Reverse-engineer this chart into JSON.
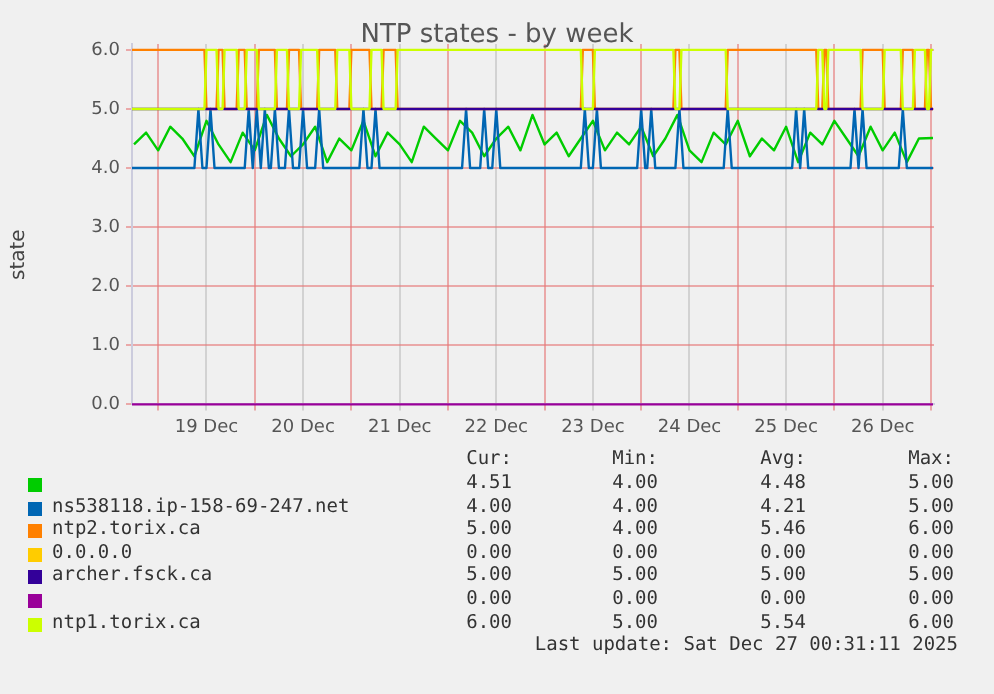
{
  "chart_data": {
    "type": "line",
    "title": "NTP states - by week",
    "ylabel": "state",
    "xlim": [
      "2025-12-18T17:30",
      "2025-12-27T00:45"
    ],
    "xticks": [
      {
        "value": "2025-12-19T00:00",
        "label": null
      },
      {
        "value": "2025-12-19T12:00",
        "label": "19 Dec"
      },
      {
        "value": "2025-12-20T00:00",
        "label": null
      },
      {
        "value": "2025-12-20T12:00",
        "label": "20 Dec"
      },
      {
        "value": "2025-12-21T00:00",
        "label": null
      },
      {
        "value": "2025-12-21T12:00",
        "label": "21 Dec"
      },
      {
        "value": "2025-12-22T00:00",
        "label": null
      },
      {
        "value": "2025-12-22T12:00",
        "label": "22 Dec"
      },
      {
        "value": "2025-12-23T00:00",
        "label": null
      },
      {
        "value": "2025-12-23T12:00",
        "label": "23 Dec"
      },
      {
        "value": "2025-12-24T00:00",
        "label": null
      },
      {
        "value": "2025-12-24T12:00",
        "label": "24 Dec"
      },
      {
        "value": "2025-12-25T00:00",
        "label": null
      },
      {
        "value": "2025-12-25T12:00",
        "label": "25 Dec"
      },
      {
        "value": "2025-12-26T00:00",
        "label": null
      },
      {
        "value": "2025-12-26T12:00",
        "label": "26 Dec"
      },
      {
        "value": "2025-12-27T00:00",
        "label": null
      }
    ],
    "ylim": [
      0,
      6.1
    ],
    "yticks": [
      {
        "value": 0,
        "label": "0.0"
      },
      {
        "value": 1,
        "label": "1.0"
      },
      {
        "value": 2,
        "label": "2.0"
      },
      {
        "value": 3,
        "label": "3.0"
      },
      {
        "value": 4,
        "label": "4.0"
      },
      {
        "value": 5,
        "label": "5.0"
      },
      {
        "value": 6,
        "label": "6.0"
      }
    ],
    "grid": true,
    "legend": "bottom",
    "marker": "none",
    "line_style": "solid",
    "series": [
      {
        "color": "#00cc00",
        "x": [
          "2025-12-18T18:00",
          "2025-12-18T21:00",
          "2025-12-19T00:00",
          "2025-12-19T03:00",
          "2025-12-19T06:00",
          "2025-12-19T09:00",
          "2025-12-19T12:00",
          "2025-12-19T15:00",
          "2025-12-19T18:00",
          "2025-12-19T21:00",
          "2025-12-20T00:00",
          "2025-12-20T03:00",
          "2025-12-20T06:00",
          "2025-12-20T09:00",
          "2025-12-20T12:00",
          "2025-12-20T15:00",
          "2025-12-20T18:00",
          "2025-12-20T21:00",
          "2025-12-21T00:00",
          "2025-12-21T03:00",
          "2025-12-21T06:00",
          "2025-12-21T09:00",
          "2025-12-21T12:00",
          "2025-12-21T15:00",
          "2025-12-21T18:00",
          "2025-12-21T21:00",
          "2025-12-22T00:00",
          "2025-12-22T03:00",
          "2025-12-22T06:00",
          "2025-12-22T09:00",
          "2025-12-22T12:00",
          "2025-12-22T15:00",
          "2025-12-22T18:00",
          "2025-12-22T21:00",
          "2025-12-23T00:00",
          "2025-12-23T03:00",
          "2025-12-23T06:00",
          "2025-12-23T09:00",
          "2025-12-23T12:00",
          "2025-12-23T15:00",
          "2025-12-23T18:00",
          "2025-12-23T21:00",
          "2025-12-24T00:00",
          "2025-12-24T03:00",
          "2025-12-24T06:00",
          "2025-12-24T09:00",
          "2025-12-24T12:00",
          "2025-12-24T15:00",
          "2025-12-24T18:00",
          "2025-12-24T21:00",
          "2025-12-25T00:00",
          "2025-12-25T03:00",
          "2025-12-25T06:00",
          "2025-12-25T09:00",
          "2025-12-25T12:00",
          "2025-12-25T15:00",
          "2025-12-25T18:00",
          "2025-12-25T21:00",
          "2025-12-26T00:00",
          "2025-12-26T03:00",
          "2025-12-26T06:00",
          "2025-12-26T09:00",
          "2025-12-26T12:00",
          "2025-12-26T15:00",
          "2025-12-26T18:00",
          "2025-12-26T21:00",
          "2025-12-27T00:30"
        ],
        "values": [
          4.4,
          4.6,
          4.3,
          4.7,
          4.5,
          4.2,
          4.8,
          4.4,
          4.1,
          4.6,
          4.3,
          4.9,
          4.5,
          4.2,
          4.4,
          4.7,
          4.1,
          4.5,
          4.3,
          4.8,
          4.2,
          4.6,
          4.4,
          4.1,
          4.7,
          4.5,
          4.3,
          4.8,
          4.6,
          4.2,
          4.5,
          4.7,
          4.3,
          4.9,
          4.4,
          4.6,
          4.2,
          4.5,
          4.8,
          4.3,
          4.6,
          4.4,
          4.7,
          4.2,
          4.5,
          4.9,
          4.3,
          4.1,
          4.6,
          4.4,
          4.8,
          4.2,
          4.5,
          4.3,
          4.7,
          4.1,
          4.6,
          4.4,
          4.8,
          4.5,
          4.2,
          4.7,
          4.3,
          4.6,
          4.1,
          4.5,
          4.51
        ]
      },
      {
        "name": "ns538118.ip-158-69-247.net",
        "color": "#0066b3",
        "x": [
          "2025-12-18T17:30",
          "2025-12-19T09:00",
          "2025-12-19T10:00",
          "2025-12-19T11:00",
          "2025-12-19T12:00",
          "2025-12-19T13:00",
          "2025-12-19T14:00",
          "2025-12-19T21:30",
          "2025-12-19T22:30",
          "2025-12-19T23:30",
          "2025-12-19T23:30",
          "2025-12-20T00:30",
          "2025-12-20T01:30",
          "2025-12-20T01:30",
          "2025-12-20T02:30",
          "2025-12-20T03:30",
          "2025-12-20T04:00",
          "2025-12-20T05:00",
          "2025-12-20T06:00",
          "2025-12-20T07:30",
          "2025-12-20T08:30",
          "2025-12-20T09:30",
          "2025-12-20T11:00",
          "2025-12-20T12:00",
          "2025-12-20T13:00",
          "2025-12-20T15:00",
          "2025-12-20T16:00",
          "2025-12-20T17:00",
          "2025-12-21T02:00",
          "2025-12-21T03:00",
          "2025-12-21T04:00",
          "2025-12-21T05:00",
          "2025-12-21T06:00",
          "2025-12-21T07:00",
          "2025-12-22T03:30",
          "2025-12-22T04:30",
          "2025-12-22T05:30",
          "2025-12-22T08:00",
          "2025-12-22T09:00",
          "2025-12-22T10:00",
          "2025-12-22T11:00",
          "2025-12-22T12:00",
          "2025-12-22T13:00",
          "2025-12-23T09:00",
          "2025-12-23T10:00",
          "2025-12-23T11:00",
          "2025-12-23T12:00",
          "2025-12-23T13:00",
          "2025-12-23T14:00",
          "2025-12-23T23:00",
          "2025-12-24T00:00",
          "2025-12-24T01:00",
          "2025-12-24T01:30",
          "2025-12-24T02:30",
          "2025-12-24T03:30",
          "2025-12-24T08:30",
          "2025-12-24T09:30",
          "2025-12-24T10:30",
          "2025-12-24T20:30",
          "2025-12-24T21:30",
          "2025-12-24T22:30",
          "2025-12-25T13:30",
          "2025-12-25T14:30",
          "2025-12-25T15:30",
          "2025-12-25T15:30",
          "2025-12-25T16:30",
          "2025-12-25T17:30",
          "2025-12-26T04:00",
          "2025-12-26T05:00",
          "2025-12-26T06:00",
          "2025-12-26T06:00",
          "2025-12-26T07:00",
          "2025-12-26T08:00",
          "2025-12-26T16:00",
          "2025-12-26T17:00",
          "2025-12-26T18:00",
          "2025-12-27T00:30"
        ],
        "values": [
          4,
          4,
          5,
          4,
          4,
          5,
          4,
          4,
          5,
          4,
          4,
          5,
          4,
          4,
          5,
          4,
          4,
          5,
          4,
          4,
          5,
          4,
          4,
          5,
          4,
          4,
          5,
          4,
          4,
          5,
          4,
          4,
          5,
          4,
          4,
          5,
          4,
          4,
          5,
          4,
          4,
          5,
          4,
          4,
          5,
          4,
          4,
          5,
          4,
          4,
          5,
          4,
          4,
          5,
          4,
          4,
          5,
          4,
          4,
          5,
          4,
          4,
          5,
          4,
          4,
          5,
          4,
          4,
          5,
          4,
          4,
          5,
          4,
          4,
          5,
          4,
          4
        ]
      },
      {
        "name": "ntp2.torix.ca",
        "color": "#ff8000",
        "x": [
          "2025-12-18T17:30",
          "2025-12-19T11:30",
          "2025-12-19T12:00",
          "2025-12-19T14:30",
          "2025-12-19T15:00",
          "2025-12-19T16:00",
          "2025-12-19T16:30",
          "2025-12-19T19:30",
          "2025-12-19T20:00",
          "2025-12-19T21:30",
          "2025-12-19T22:00",
          "2025-12-20T00:30",
          "2025-12-20T01:00",
          "2025-12-20T05:00",
          "2025-12-20T05:30",
          "2025-12-20T08:00",
          "2025-12-20T08:30",
          "2025-12-20T11:00",
          "2025-12-20T11:30",
          "2025-12-20T15:30",
          "2025-12-20T16:00",
          "2025-12-20T20:00",
          "2025-12-20T20:30",
          "2025-12-20T23:30",
          "2025-12-21T00:00",
          "2025-12-21T04:30",
          "2025-12-21T05:00",
          "2025-12-21T07:30",
          "2025-12-21T08:00",
          "2025-12-21T11:00",
          "2025-12-21T11:30",
          "2025-12-23T09:00",
          "2025-12-23T09:30",
          "2025-12-23T12:00",
          "2025-12-23T12:30",
          "2025-12-24T08:00",
          "2025-12-24T08:30",
          "2025-12-24T09:30",
          "2025-12-24T10:00",
          "2025-12-24T21:00",
          "2025-12-24T21:30",
          "2025-12-25T19:30",
          "2025-12-25T20:00",
          "2025-12-25T21:00",
          "2025-12-25T21:30",
          "2025-12-25T22:00",
          "2025-12-25T22:30",
          "2025-12-26T06:30",
          "2025-12-26T07:00",
          "2025-12-26T12:00",
          "2025-12-26T12:30",
          "2025-12-26T16:30",
          "2025-12-26T17:00",
          "2025-12-26T19:30",
          "2025-12-26T20:00",
          "2025-12-26T22:30",
          "2025-12-26T23:00",
          "2025-12-26T23:30",
          "2025-12-27T00:00",
          "2025-12-27T00:30"
        ],
        "values": [
          6,
          6,
          5,
          5,
          6,
          6,
          5,
          5,
          6,
          6,
          5,
          5,
          6,
          6,
          5,
          5,
          6,
          6,
          5,
          5,
          6,
          6,
          5,
          5,
          6,
          6,
          5,
          5,
          6,
          6,
          5,
          5,
          6,
          6,
          5,
          5,
          6,
          6,
          5,
          5,
          6,
          6,
          5,
          5,
          6,
          6,
          5,
          5,
          6,
          6,
          5,
          5,
          6,
          6,
          5,
          5,
          6,
          6,
          5,
          5
        ]
      },
      {
        "name": "0.0.0.0",
        "color": "#ffcc00"
      },
      {
        "name": "archer.fsck.ca",
        "color": "#330099",
        "x": [
          "2025-12-18T17:30",
          "2025-12-27T00:30"
        ],
        "values": [
          5,
          5
        ]
      },
      {
        "color": "#990099",
        "x": [
          "2025-12-18T17:30",
          "2025-12-27T00:30"
        ],
        "values": [
          0,
          0
        ]
      },
      {
        "name": "ntp1.torix.ca",
        "color": "#ccff00",
        "x": [
          "2025-12-18T17:30",
          "2025-12-19T11:30",
          "2025-12-19T12:00",
          "2025-12-19T14:30",
          "2025-12-19T15:00",
          "2025-12-19T16:00",
          "2025-12-19T16:30",
          "2025-12-19T19:30",
          "2025-12-19T20:00",
          "2025-12-19T21:30",
          "2025-12-19T22:00",
          "2025-12-20T00:30",
          "2025-12-20T01:00",
          "2025-12-20T05:00",
          "2025-12-20T05:30",
          "2025-12-20T08:00",
          "2025-12-20T08:30",
          "2025-12-20T11:00",
          "2025-12-20T11:30",
          "2025-12-20T15:30",
          "2025-12-20T16:00",
          "2025-12-20T20:00",
          "2025-12-20T20:30",
          "2025-12-20T23:30",
          "2025-12-21T00:00",
          "2025-12-21T04:30",
          "2025-12-21T05:00",
          "2025-12-21T07:30",
          "2025-12-21T08:00",
          "2025-12-21T11:00",
          "2025-12-21T11:30",
          "2025-12-23T09:00",
          "2025-12-23T09:30",
          "2025-12-23T12:00",
          "2025-12-23T12:30",
          "2025-12-24T08:00",
          "2025-12-24T08:30",
          "2025-12-24T09:30",
          "2025-12-24T10:00",
          "2025-12-24T21:00",
          "2025-12-24T21:30",
          "2025-12-25T19:30",
          "2025-12-25T20:00",
          "2025-12-25T21:00",
          "2025-12-25T21:30",
          "2025-12-25T22:00",
          "2025-12-25T22:30",
          "2025-12-26T06:30",
          "2025-12-26T07:00",
          "2025-12-26T12:00",
          "2025-12-26T12:30",
          "2025-12-26T16:30",
          "2025-12-26T17:00",
          "2025-12-26T19:30",
          "2025-12-26T20:00",
          "2025-12-26T22:30",
          "2025-12-26T23:00",
          "2025-12-26T23:30",
          "2025-12-27T00:00",
          "2025-12-27T00:30"
        ],
        "values": [
          5,
          5,
          6,
          6,
          5,
          5,
          6,
          6,
          5,
          5,
          6,
          6,
          5,
          5,
          6,
          6,
          5,
          5,
          6,
          6,
          5,
          5,
          6,
          6,
          5,
          5,
          6,
          6,
          5,
          5,
          6,
          6,
          5,
          5,
          6,
          6,
          5,
          5,
          6,
          6,
          5,
          5,
          6,
          6,
          5,
          5,
          6,
          6,
          5,
          5,
          6,
          6,
          5,
          5,
          6,
          6,
          5,
          5,
          6,
          6
        ]
      }
    ],
    "annotations": [
      "Cur:",
      "Min:",
      "Avg:",
      "Max:",
      "4.51",
      "4.00",
      "4.48",
      "5.00",
      "4.00",
      "4.00",
      "4.21",
      "5.00",
      "5.00",
      "4.00",
      "5.46",
      "6.00",
      "0.00",
      "0.00",
      "0.00",
      "0.00",
      "5.00",
      "5.00",
      "5.00",
      "5.00",
      "0.00",
      "0.00",
      "0.00",
      "0.00",
      "6.00",
      "5.00",
      "5.54",
      "6.00",
      "Last update: Sat Dec 27 00:31:11 2025"
    ]
  }
}
